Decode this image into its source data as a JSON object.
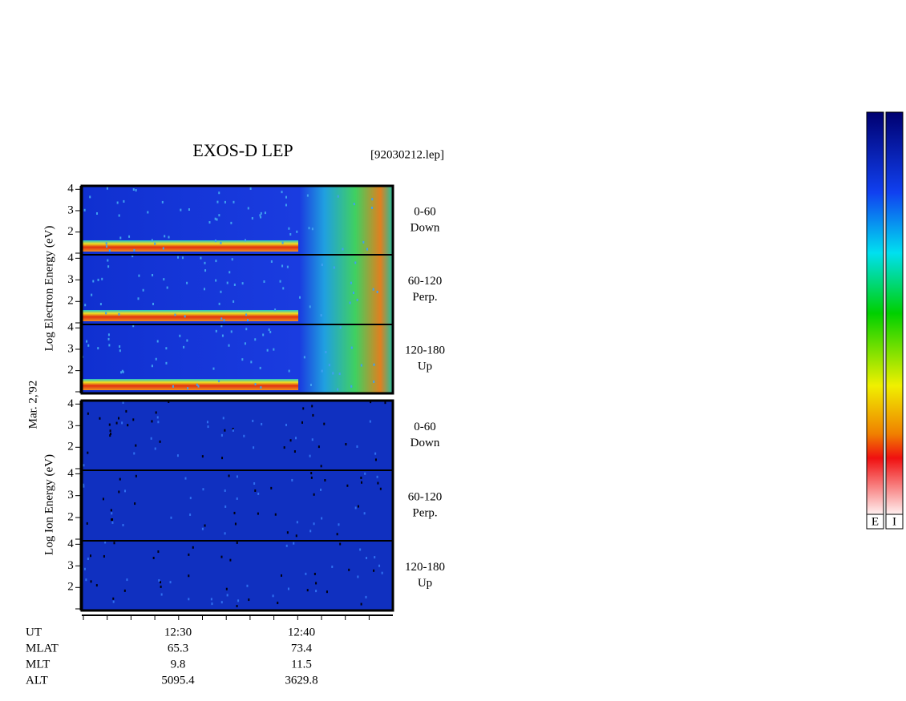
{
  "title": "EXOS-D LEP",
  "file": "[92030212.lep]",
  "date": "Mar. 2,'92",
  "yticks": [
    "4",
    "3",
    "2"
  ],
  "electron": {
    "axis_label": "Log Electron Energy (eV)",
    "panels": [
      {
        "label": "0-60",
        "sub": "Down"
      },
      {
        "label": "60-120",
        "sub": "Perp."
      },
      {
        "label": "120-180",
        "sub": "Up"
      }
    ]
  },
  "ion": {
    "axis_label": "Log Ion Energy (eV)",
    "panels": [
      {
        "label": "0-60",
        "sub": "Down"
      },
      {
        "label": "60-120",
        "sub": "Perp."
      },
      {
        "label": "120-180",
        "sub": "Up"
      }
    ]
  },
  "time_axis": {
    "rows": [
      {
        "label": "UT",
        "values": [
          "12:30",
          "12:40"
        ]
      },
      {
        "label": "MLAT",
        "values": [
          "65.3",
          "73.4"
        ]
      },
      {
        "label": "MLT",
        "values": [
          "9.8",
          "11.5"
        ]
      },
      {
        "label": "ALT",
        "values": [
          "5095.4",
          "3629.8"
        ]
      }
    ]
  },
  "colorbars": [
    "E",
    "I"
  ]
}
